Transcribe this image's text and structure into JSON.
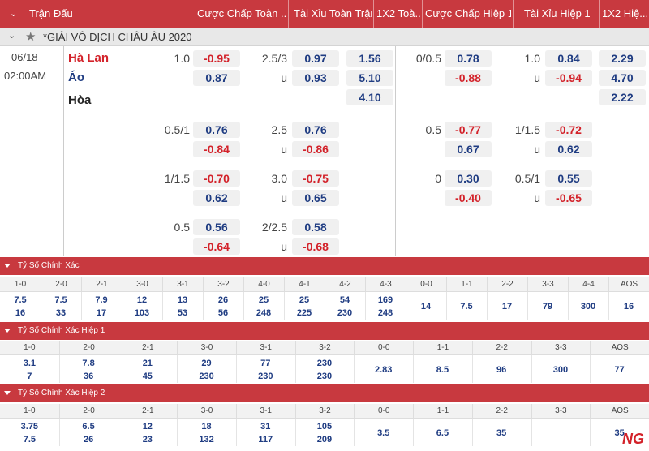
{
  "header": {
    "col_match": "Trận Đấu",
    "col_hdp_ft": "Cược Chấp Toàn ...",
    "col_ou_ft": "Tài Xỉu Toàn Trận",
    "col_1x2_ft": "1X2 Toà...",
    "col_hdp_h1": "Cược Chấp Hiệp 1",
    "col_ou_h1": "Tài Xỉu Hiệp 1",
    "col_1x2_h1": "1X2 Hiệ..."
  },
  "league": {
    "name": "*GIẢI VÔ ĐỊCH CHÂU ÂU 2020"
  },
  "match": {
    "date": "06/18",
    "time": "02:00AM",
    "home": "Hà Lan",
    "away": "Áo",
    "draw": "Hòa",
    "colors": {
      "home": "#d3222a",
      "away": "#1f3c82",
      "draw": "#222222"
    }
  },
  "lines": [
    {
      "hdp_ft": "1.0",
      "hdp_ft_home": "-0.95",
      "hdp_ft_away": "0.87",
      "ou_ft": "2.5/3",
      "ou_ft_over": "0.97",
      "ou_ft_u": "u",
      "ou_ft_under": "0.93",
      "x12_ft": [
        "1.56",
        "5.10",
        "4.10"
      ],
      "hdp_h1": "0/0.5",
      "hdp_h1_home": "0.78",
      "hdp_h1_away": "-0.88",
      "ou_h1": "1.0",
      "ou_h1_over": "0.84",
      "ou_h1_u": "u",
      "ou_h1_under": "-0.94",
      "x12_h1": [
        "2.29",
        "4.70",
        "2.22"
      ]
    },
    {
      "hdp_ft": "0.5/1",
      "hdp_ft_home": "0.76",
      "hdp_ft_away": "-0.84",
      "ou_ft": "2.5",
      "ou_ft_over": "0.76",
      "ou_ft_u": "u",
      "ou_ft_under": "-0.86",
      "hdp_h1": "0.5",
      "hdp_h1_home": "-0.77",
      "hdp_h1_away": "0.67",
      "ou_h1": "1/1.5",
      "ou_h1_over": "-0.72",
      "ou_h1_u": "u",
      "ou_h1_under": "0.62"
    },
    {
      "hdp_ft": "1/1.5",
      "hdp_ft_home": "-0.70",
      "hdp_ft_away": "0.62",
      "ou_ft": "3.0",
      "ou_ft_over": "-0.75",
      "ou_ft_u": "u",
      "ou_ft_under": "0.65",
      "hdp_h1": "0",
      "hdp_h1_home": "0.30",
      "hdp_h1_away": "-0.40",
      "ou_h1": "0.5/1",
      "ou_h1_over": "0.55",
      "ou_h1_u": "u",
      "ou_h1_under": "-0.65"
    },
    {
      "hdp_ft": "0.5",
      "hdp_ft_home": "0.56",
      "hdp_ft_away": "-0.64",
      "ou_ft": "2/2.5",
      "ou_ft_over": "0.58",
      "ou_ft_u": "u",
      "ou_ft_under": "-0.68"
    }
  ],
  "correct_score": {
    "title": "Tỷ Số Chính Xác",
    "cols": [
      "1-0",
      "2-0",
      "2-1",
      "3-0",
      "3-1",
      "3-2",
      "4-0",
      "4-1",
      "4-2",
      "4-3",
      "0-0",
      "1-1",
      "2-2",
      "3-3",
      "4-4",
      "AOS"
    ],
    "home": [
      "7.5",
      "7.5",
      "7.9",
      "12",
      "13",
      "26",
      "25",
      "25",
      "54",
      "169",
      "14",
      "7.5",
      "17",
      "79",
      "300",
      "16"
    ],
    "away": [
      "16",
      "33",
      "17",
      "103",
      "53",
      "56",
      "248",
      "225",
      "230",
      "248"
    ]
  },
  "correct_score_h1": {
    "title": "Tỷ Số Chính Xác Hiệp 1",
    "cols": [
      "1-0",
      "2-0",
      "2-1",
      "3-0",
      "3-1",
      "3-2",
      "0-0",
      "1-1",
      "2-2",
      "3-3",
      "AOS"
    ],
    "home": [
      "3.1",
      "7.8",
      "21",
      "29",
      "77",
      "230",
      "2.83",
      "8.5",
      "96",
      "300",
      "77"
    ],
    "away": [
      "7",
      "36",
      "45",
      "230",
      "230",
      "230"
    ]
  },
  "correct_score_h2": {
    "title": "Tỷ Số Chính Xác Hiệp 2",
    "cols": [
      "1-0",
      "2-0",
      "2-1",
      "3-0",
      "3-1",
      "3-2",
      "0-0",
      "1-1",
      "2-2",
      "3-3",
      "AOS"
    ],
    "home": [
      "3.75",
      "6.5",
      "12",
      "18",
      "31",
      "105",
      "3.5",
      "6.5",
      "35",
      "",
      "35"
    ],
    "away": [
      "7.5",
      "26",
      "23",
      "132",
      "117",
      "209"
    ]
  },
  "watermark": {
    "text": "NG"
  }
}
